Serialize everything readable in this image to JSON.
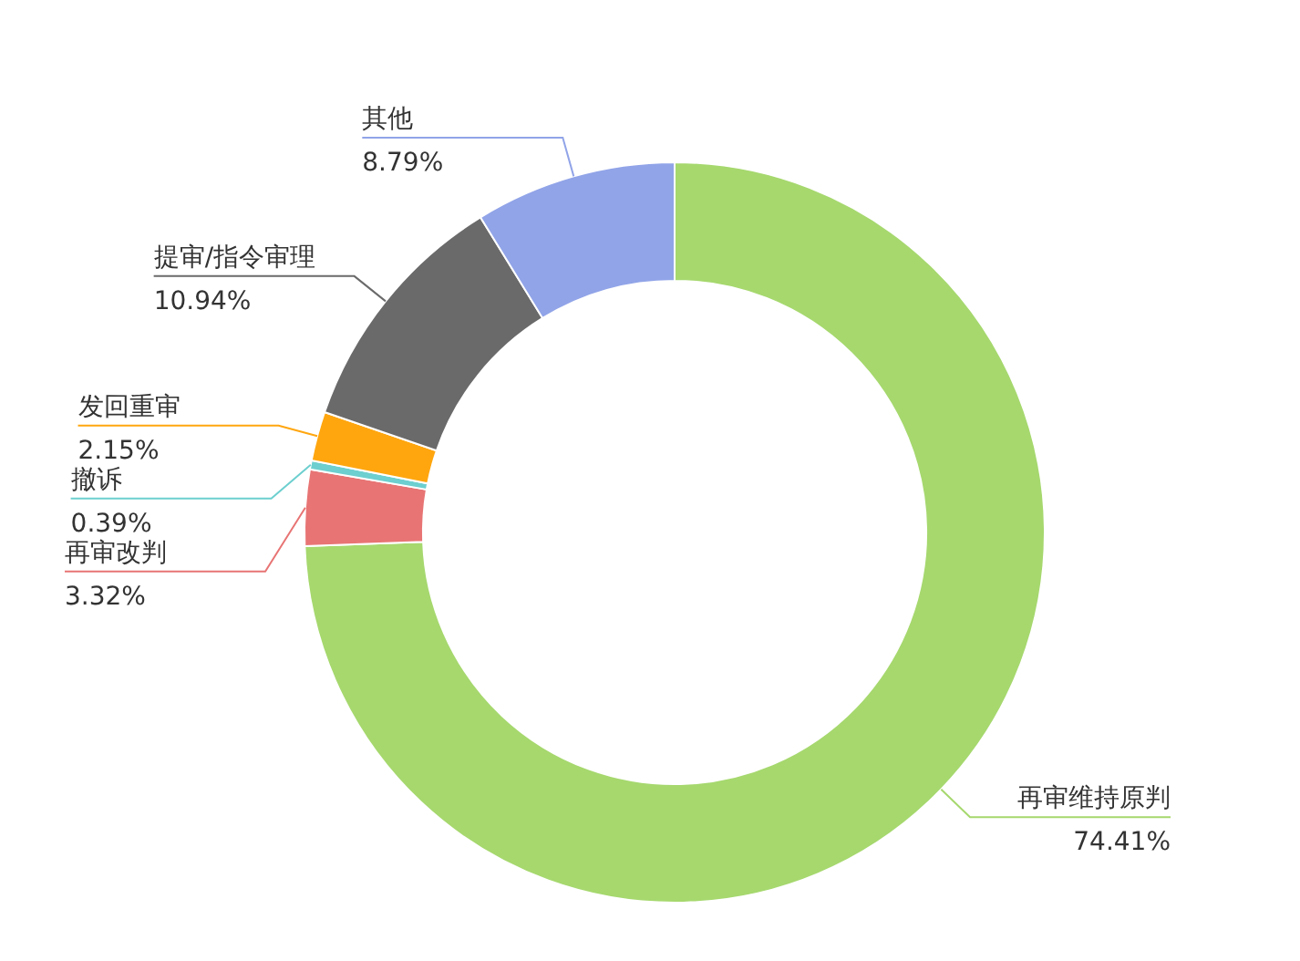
{
  "chart_data": {
    "type": "donut",
    "categories": [
      "再审维持原判",
      "再审改判",
      "撤诉",
      "发回重审",
      "提审/指令审理",
      "其他"
    ],
    "values": [
      74.41,
      3.32,
      0.39,
      2.15,
      10.94,
      8.79
    ],
    "colors": [
      "#a6d86e",
      "#e87474",
      "#6dcfcf",
      "#ffa60f",
      "#6b6a6a",
      "#91a4e8"
    ],
    "value_labels": [
      "74.41%",
      "3.32%",
      "0.39%",
      "2.15%",
      "10.94%",
      "8.79%"
    ]
  }
}
